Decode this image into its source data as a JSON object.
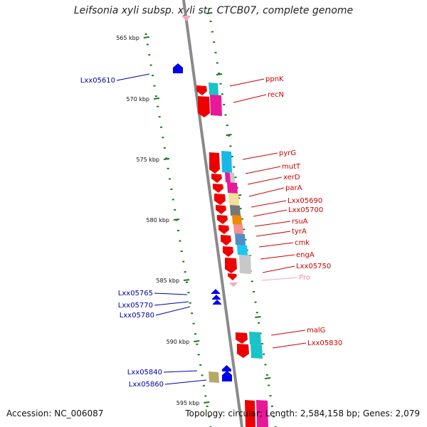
{
  "title": "Leifsonia xyli subsp. xyli str. CTCB07, complete genome",
  "footer": {
    "accession": "Accession: NC_006087",
    "stats": "Topology: circular; Length: 2,584,158 bp; Genes: 2,079"
  },
  "ticks": [
    {
      "label": "565 kbp"
    },
    {
      "label": "570 kbp"
    },
    {
      "label": "575 kbp"
    },
    {
      "label": "580 kbp"
    },
    {
      "label": "585 kbp"
    },
    {
      "label": "590 kbp"
    },
    {
      "label": "595 kbp"
    }
  ],
  "genes_forward": [
    {
      "label": "ppnK"
    },
    {
      "label": "recN"
    },
    {
      "label": "pyrG"
    },
    {
      "label": "mutT"
    },
    {
      "label": "xerD"
    },
    {
      "label": "parA"
    },
    {
      "label": "Lxx05690"
    },
    {
      "label": "Lxx05700"
    },
    {
      "label": "rsuA"
    },
    {
      "label": "tyrA"
    },
    {
      "label": "cmk"
    },
    {
      "label": "engA"
    },
    {
      "label": "Lxx05750"
    },
    {
      "label": "Pro"
    },
    {
      "label": "malG"
    },
    {
      "label": "Lxx05830"
    }
  ],
  "genes_reverse": [
    {
      "label": "Lxx05610"
    },
    {
      "label": "Lxx05765"
    },
    {
      "label": "Lxx05770"
    },
    {
      "label": "Lxx05780"
    },
    {
      "label": "Lxx05840"
    },
    {
      "label": "Lxx05860"
    }
  ],
  "colors": {
    "backbone": "#8a8a8a",
    "tick": "#1a7a1a",
    "cds_forward": "#ee0000",
    "cds_reverse": "#0000ee",
    "trna": "#f4a6bf",
    "label_forward": "#cc0000",
    "label_reverse": "#0000aa"
  }
}
